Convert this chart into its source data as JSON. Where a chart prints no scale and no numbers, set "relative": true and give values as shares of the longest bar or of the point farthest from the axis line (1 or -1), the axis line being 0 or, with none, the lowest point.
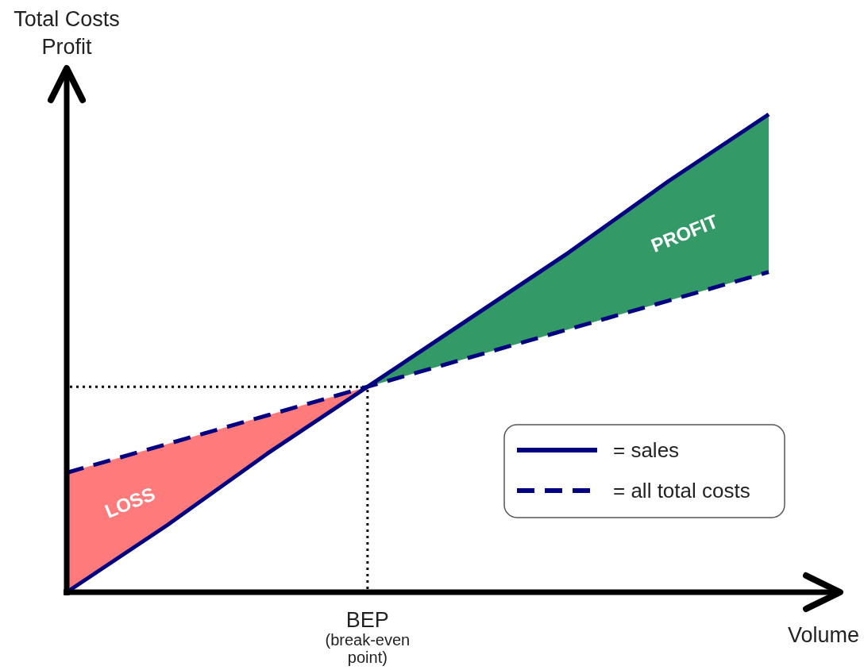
{
  "chart_data": {
    "type": "line",
    "ylabel": "Total Costs\nProfit",
    "xlabel": "Volume",
    "relative": true,
    "categories": [
      null,
      null,
      null,
      null,
      null,
      null,
      null,
      null
    ],
    "series": [
      {
        "type": "area",
        "name": "LOSS",
        "color": "#ff7b7b",
        "values": [
          0.25,
          0.31,
          0.37,
          0.43,
          null,
          null,
          null,
          null
        ]
      },
      {
        "type": "area",
        "name": "PROFIT",
        "color": "#339966",
        "values": [
          null,
          null,
          null,
          0.43,
          0.57,
          0.71,
          0.86,
          1
        ]
      },
      {
        "name": "= sales",
        "color": "#000080",
        "line_style": "solid",
        "values": [
          0,
          0.14,
          0.29,
          0.43,
          0.57,
          0.71,
          0.86,
          1
        ]
      },
      {
        "name": "= all total costs",
        "color": "#000080",
        "line_style": "dashed",
        "values": [
          0.25,
          0.31,
          0.37,
          0.43,
          0.49,
          0.55,
          0.61,
          0.67
        ]
      }
    ],
    "ref_lines": [
      {
        "axis": "y",
        "value": 0.43,
        "color": "#000000",
        "line_style": "dotted"
      },
      {
        "axis": "x",
        "value": "BEP",
        "label": "(break-even point)",
        "color": "#000000",
        "line_style": "dotted"
      }
    ],
    "legend": "bottom right"
  }
}
